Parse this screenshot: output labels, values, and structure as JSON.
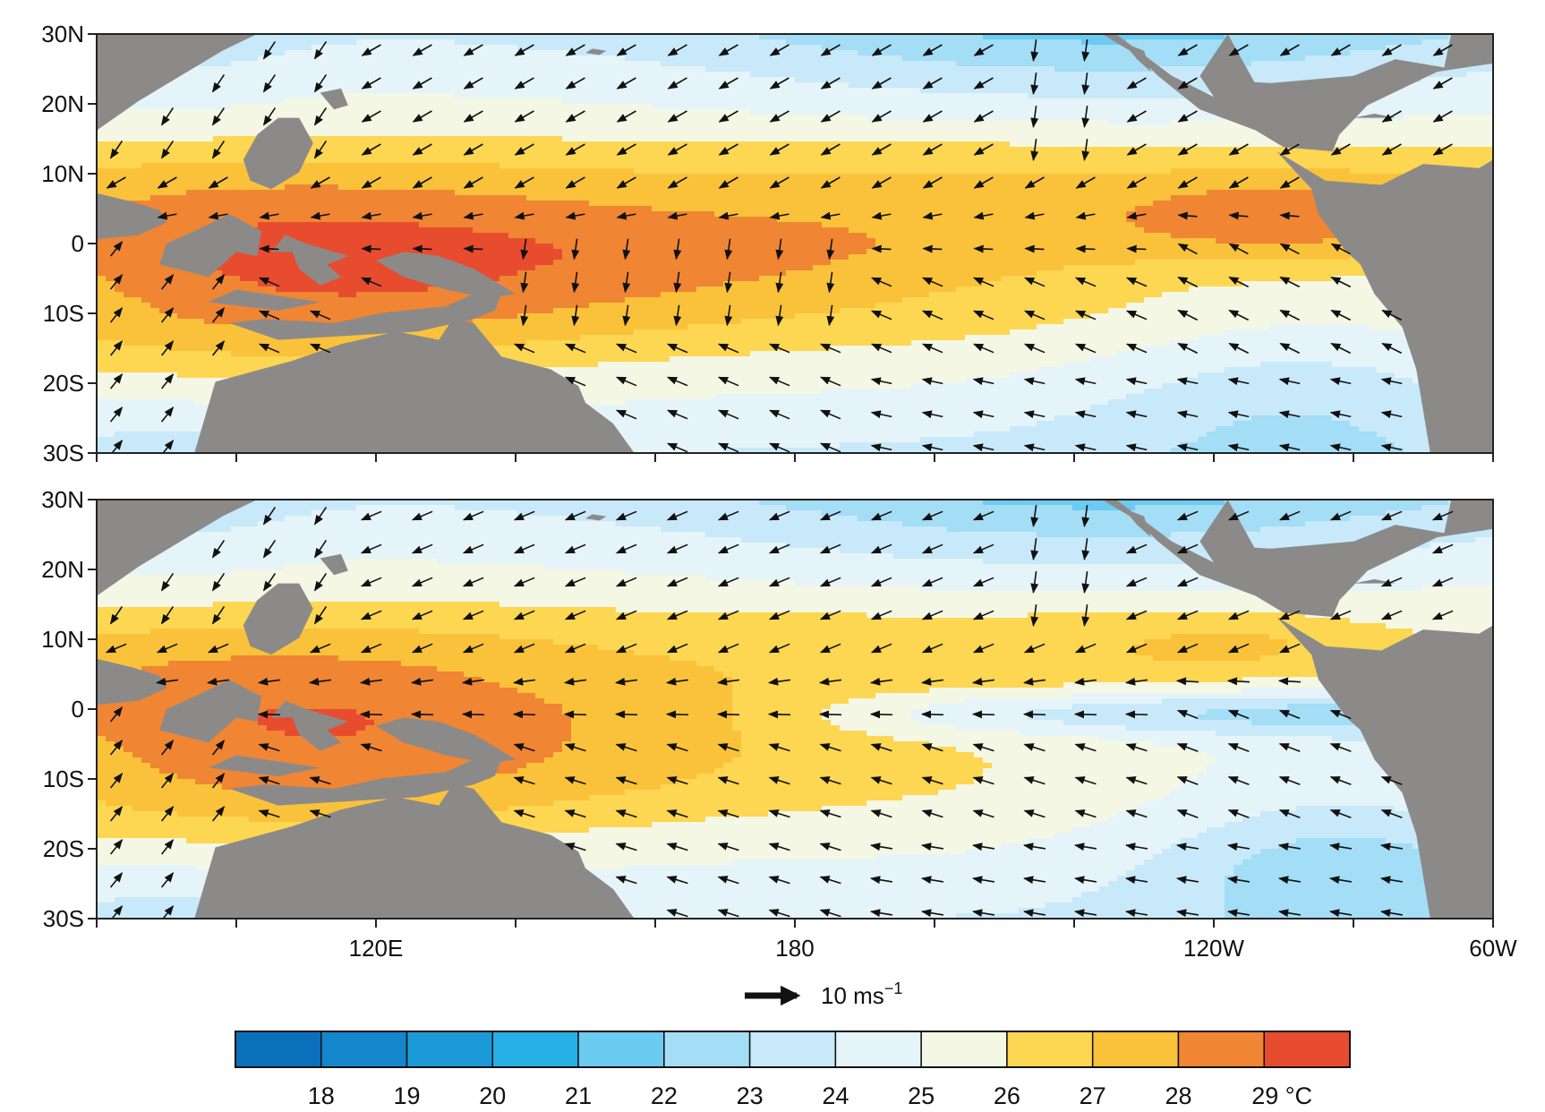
{
  "panels": [
    {
      "name": "upper",
      "warm_pool_east": 1.0
    },
    {
      "name": "lower",
      "warm_pool_east": 0.0
    }
  ],
  "lat_labels": [
    "30N",
    "20N",
    "10N",
    "0",
    "10S",
    "20S",
    "30S"
  ],
  "lon_labels": [
    "120E",
    "180",
    "120W",
    "60W"
  ],
  "vector_key": {
    "value_text": "10 ms",
    "exponent": "−1"
  },
  "colorbar": {
    "colors": [
      "#0a70bb",
      "#1486cb",
      "#1c9ad8",
      "#27b0e6",
      "#6bcbf1",
      "#a3ddf6",
      "#c8e9f9",
      "#e5f4f9",
      "#f3f7e4",
      "#fdd652",
      "#fac23a",
      "#f08533",
      "#e84c2f"
    ],
    "labels": [
      "18",
      "19",
      "20",
      "21",
      "22",
      "23",
      "24",
      "25",
      "26",
      "27",
      "28",
      "29 °C"
    ]
  },
  "land_color": "#8c8a89"
}
